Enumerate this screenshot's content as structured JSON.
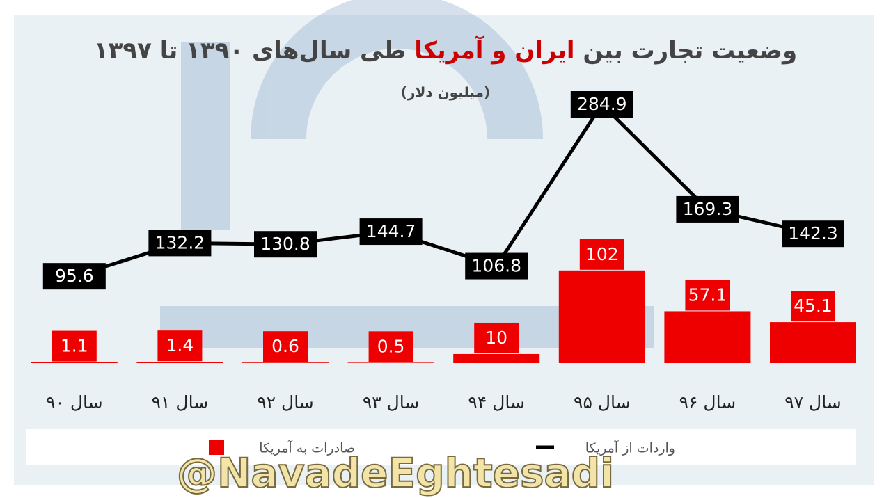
{
  "chart_data": {
    "type": "bar-line",
    "title": [
      "وضعیت تجارت بین",
      "ایران و آمریکا",
      "طی سال‌های ۱۳۹۰ تا ۱۳۹۷"
    ],
    "subtitle": "(میلیون دلار)",
    "categories": [
      "سال ۹۰",
      "سال ۹۱",
      "سال ۹۲",
      "سال ۹۳",
      "سال ۹۴",
      "سال ۹۵",
      "سال ۹۶",
      "سال ۹۷"
    ],
    "series": [
      {
        "name": "صادرات به آمریکا",
        "type": "bar",
        "color": "#ee0000",
        "values": [
          1.1,
          1.4,
          0.6,
          0.5,
          10,
          102,
          57.1,
          45.1
        ]
      },
      {
        "name": "واردات از آمریکا",
        "type": "line",
        "color": "#000000",
        "values": [
          95.6,
          132.2,
          130.8,
          144.7,
          106.8,
          284.9,
          169.3,
          142.3
        ]
      }
    ],
    "watermark": "@NavadeEghtesadi"
  }
}
